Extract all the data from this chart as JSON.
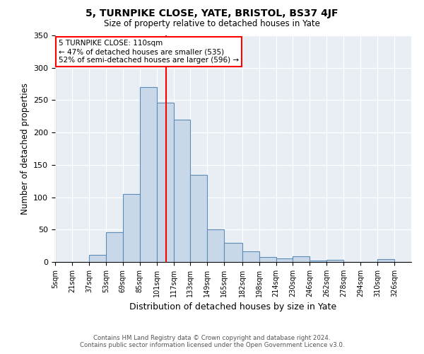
{
  "title": "5, TURNPIKE CLOSE, YATE, BRISTOL, BS37 4JF",
  "subtitle": "Size of property relative to detached houses in Yate",
  "xlabel": "Distribution of detached houses by size in Yate",
  "ylabel": "Number of detached properties",
  "footer_line1": "Contains HM Land Registry data © Crown copyright and database right 2024.",
  "footer_line2": "Contains public sector information licensed under the Open Government Licence v3.0.",
  "annotation_title": "5 TURNPIKE CLOSE: 110sqm",
  "annotation_line1": "← 47% of detached houses are smaller (535)",
  "annotation_line2": "52% of semi-detached houses are larger (596) →",
  "property_value": 110,
  "bar_color": "#c8d8e8",
  "bar_edge_color": "#5b8db8",
  "vline_color": "red",
  "bg_color": "#e8eef4",
  "bins": [
    5,
    21,
    37,
    53,
    69,
    85,
    101,
    117,
    133,
    149,
    165,
    182,
    198,
    214,
    230,
    246,
    262,
    278,
    294,
    310,
    326,
    342
  ],
  "bin_labels": [
    "5sqm",
    "21sqm",
    "37sqm",
    "53sqm",
    "69sqm",
    "85sqm",
    "101sqm",
    "117sqm",
    "133sqm",
    "149sqm",
    "165sqm",
    "182sqm",
    "198sqm",
    "214sqm",
    "230sqm",
    "246sqm",
    "262sqm",
    "278sqm",
    "294sqm",
    "310sqm",
    "326sqm"
  ],
  "counts": [
    0,
    0,
    11,
    46,
    105,
    270,
    246,
    220,
    134,
    50,
    29,
    16,
    8,
    5,
    9,
    2,
    3,
    0,
    0,
    4,
    0
  ],
  "ylim": [
    0,
    350
  ],
  "yticks": [
    0,
    50,
    100,
    150,
    200,
    250,
    300,
    350
  ]
}
